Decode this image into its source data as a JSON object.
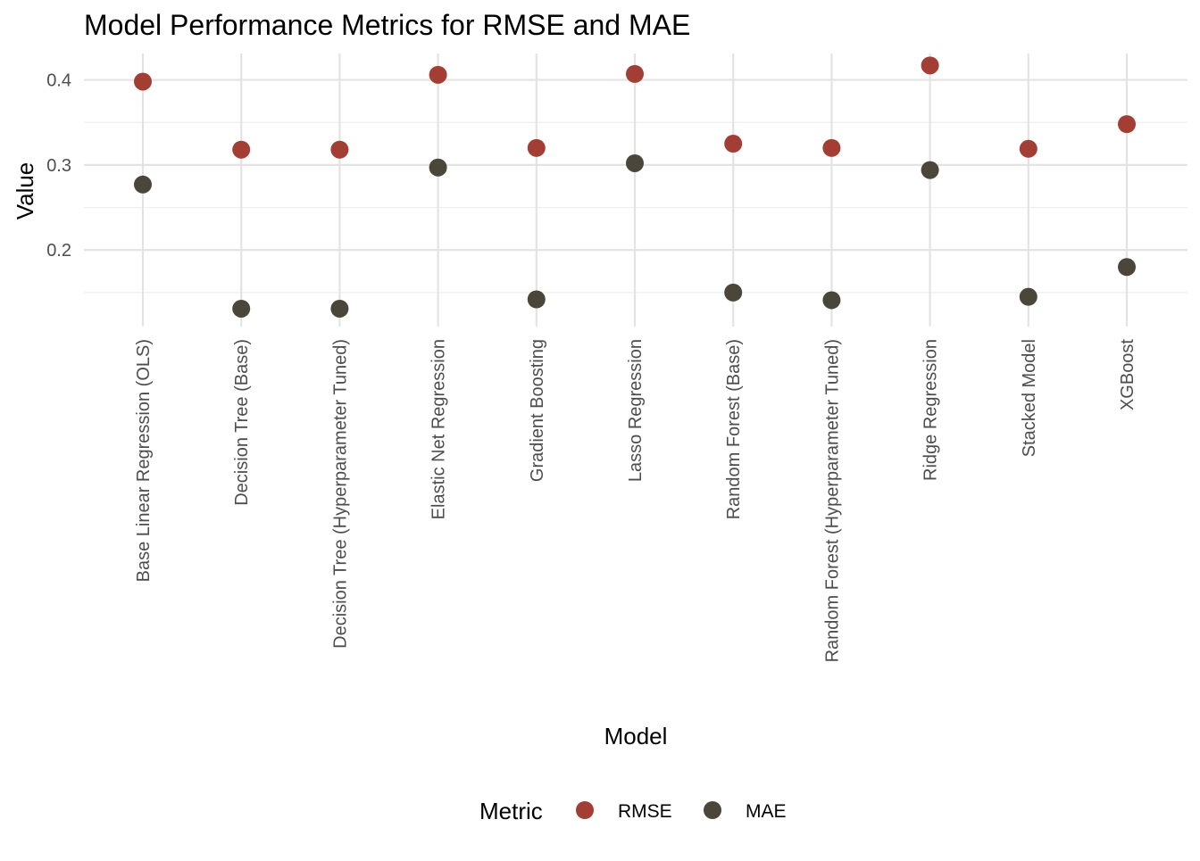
{
  "chart_data": {
    "type": "scatter",
    "title": "Model Performance Metrics for RMSE and MAE",
    "xlabel": "Model",
    "ylabel": "Value",
    "categories": [
      "Base Linear Regression (OLS)",
      "Decision Tree (Base)",
      "Decision Tree (Hyperparameter Tuned)",
      "Elastic Net Regression",
      "Gradient Boosting",
      "Lasso Regression",
      "Random Forest (Base)",
      "Random Forest (Hyperparameter Tuned)",
      "Ridge Regression",
      "Stacked Model",
      "XGBoost"
    ],
    "series": [
      {
        "name": "RMSE",
        "color": "#A33E34",
        "values": [
          0.398,
          0.318,
          0.318,
          0.406,
          0.32,
          0.407,
          0.325,
          0.32,
          0.417,
          0.319,
          0.348
        ]
      },
      {
        "name": "MAE",
        "color": "#4B463A",
        "values": [
          0.277,
          0.131,
          0.131,
          0.297,
          0.142,
          0.302,
          0.15,
          0.141,
          0.294,
          0.145,
          0.18
        ]
      }
    ],
    "y_ticks": [
      0.2,
      0.3,
      0.4
    ],
    "y_tick_labels": [
      "0.2",
      "0.3",
      "0.4"
    ],
    "ylim": [
      0.11,
      0.431
    ],
    "grid": true,
    "legend": {
      "title": "Metric",
      "position": "bottom"
    }
  }
}
